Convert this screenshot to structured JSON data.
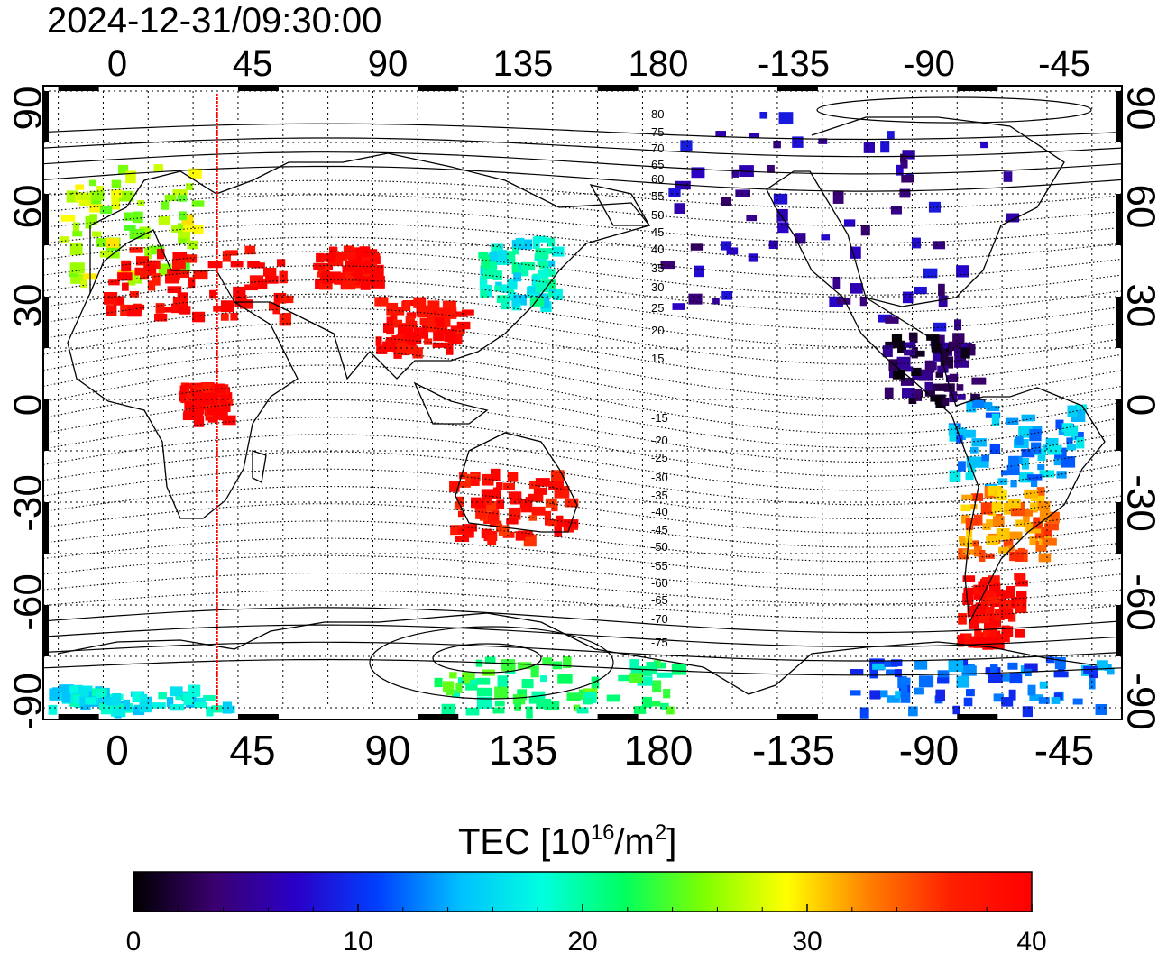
{
  "timestamp": "2024-12-31/09:30:00",
  "x_ticks": [
    "0",
    "45",
    "90",
    "135",
    "180",
    "-135",
    "-90",
    "-45"
  ],
  "y_ticks": [
    "90",
    "60",
    "30",
    "0",
    "-30",
    "-60",
    "-90"
  ],
  "contour_labels": [
    "80",
    "75",
    "70",
    "65",
    "60",
    "55",
    "50",
    "45",
    "40",
    "35",
    "30",
    "25",
    "20",
    "15",
    "-15",
    "-20",
    "-25",
    "-30",
    "-35",
    "-40",
    "-45",
    "-50",
    "-55",
    "-60",
    "-65",
    "-70",
    "-75"
  ],
  "colorbar": {
    "title_main": "TEC  [10",
    "title_exp": "16",
    "title_unit": "/m",
    "title_exp2": "2",
    "title_end": "]",
    "ticks": [
      "0",
      "10",
      "20",
      "30",
      "40"
    ],
    "min": 0,
    "max": 40,
    "colors": [
      "#000000",
      "#3a0070",
      "#2a00c8",
      "#0040ff",
      "#00c0ff",
      "#00ffe0",
      "#00ff60",
      "#80ff00",
      "#ffff00",
      "#ff8000",
      "#ff2000",
      "#ff0000"
    ]
  },
  "red_meridian_lon": 38,
  "tec_regions": [
    {
      "name": "western-europe",
      "lon": [
        -15,
        30
      ],
      "lat": [
        35,
        70
      ],
      "tec": 27
    },
    {
      "name": "mediterranean",
      "lon": [
        0,
        60
      ],
      "lat": [
        25,
        45
      ],
      "tec": 40
    },
    {
      "name": "central-asia",
      "lon": [
        70,
        90
      ],
      "lat": [
        35,
        45
      ],
      "tec": 40
    },
    {
      "name": "china",
      "lon": [
        90,
        120
      ],
      "lat": [
        15,
        30
      ],
      "tec": 40
    },
    {
      "name": "japan",
      "lon": [
        125,
        150
      ],
      "lat": [
        28,
        48
      ],
      "tec": 18
    },
    {
      "name": "east-africa",
      "lon": [
        25,
        40
      ],
      "lat": [
        -5,
        5
      ],
      "tec": 40
    },
    {
      "name": "australia",
      "lon": [
        115,
        155
      ],
      "lat": [
        -40,
        -20
      ],
      "tec": 38
    },
    {
      "name": "north-america",
      "lon": [
        -175,
        -55
      ],
      "lat": [
        20,
        85
      ],
      "tec": 6
    },
    {
      "name": "central-america",
      "lon": [
        -100,
        -70
      ],
      "lat": [
        0,
        20
      ],
      "tec": 3
    },
    {
      "name": "south-america-north",
      "lon": [
        -80,
        -35
      ],
      "lat": [
        -25,
        0
      ],
      "tec": 14
    },
    {
      "name": "south-america-south",
      "lon": [
        -75,
        -45
      ],
      "lat": [
        -45,
        -25
      ],
      "tec": 33
    },
    {
      "name": "patagonia",
      "lon": [
        -75,
        -55
      ],
      "lat": [
        -70,
        -50
      ],
      "tec": 40
    },
    {
      "name": "antarctica-east",
      "lon": [
        -115,
        -25
      ],
      "lat": [
        -90,
        -75
      ],
      "tec": 12
    },
    {
      "name": "antarctica-west",
      "lon": [
        110,
        190
      ],
      "lat": [
        -90,
        -75
      ],
      "tec": 22
    },
    {
      "name": "antarctica-atlantic",
      "lon": [
        -20,
        40
      ],
      "lat": [
        -90,
        -83
      ],
      "tec": 17
    }
  ]
}
